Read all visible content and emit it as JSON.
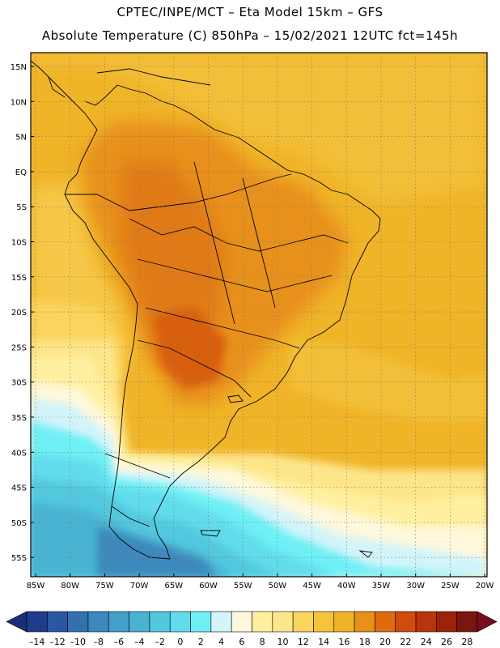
{
  "header": {
    "line1": "CPTEC/INPE/MCT –  Eta Model 15km – GFS",
    "line2": "Absolute Temperature (C) 850hPa – 15/02/2021 12UTC fct=145h"
  },
  "map": {
    "lat_labels": [
      "15N",
      "10N",
      "5N",
      "EQ",
      "5S",
      "10S",
      "15S",
      "20S",
      "25S",
      "30S",
      "35S",
      "40S",
      "45S",
      "50S",
      "55S"
    ],
    "lon_labels": [
      "85W",
      "80W",
      "75W",
      "70W",
      "65W",
      "60W",
      "55W",
      "50W",
      "45W",
      "40W",
      "35W",
      "30W",
      "25W",
      "20W"
    ],
    "field": "temperature 850hPa",
    "grid": "dotted",
    "ocean_color": "#f0b428"
  },
  "colorbar": {
    "labels": [
      "-14",
      "-12",
      "-10",
      "-8",
      "-6",
      "-4",
      "-2",
      "0",
      "2",
      "4",
      "6",
      "8",
      "10",
      "12",
      "14",
      "16",
      "18",
      "20",
      "22",
      "24",
      "26",
      "28"
    ],
    "colors": [
      "#1e3c8c",
      "#2a56a2",
      "#3470b0",
      "#3c88bc",
      "#42a0c8",
      "#48b4d2",
      "#52c8de",
      "#62dcec",
      "#6ef0f6",
      "#d2f4fa",
      "#fff8dc",
      "#fff0a0",
      "#fde68a",
      "#fad45c",
      "#f6c43c",
      "#f0b428",
      "#e8901a",
      "#e06a10",
      "#d04c0c",
      "#b8340a",
      "#9a240a",
      "#7a160e"
    ],
    "left_arrow_color": "#1a2f78",
    "right_arrow_color": "#7a0c20"
  }
}
